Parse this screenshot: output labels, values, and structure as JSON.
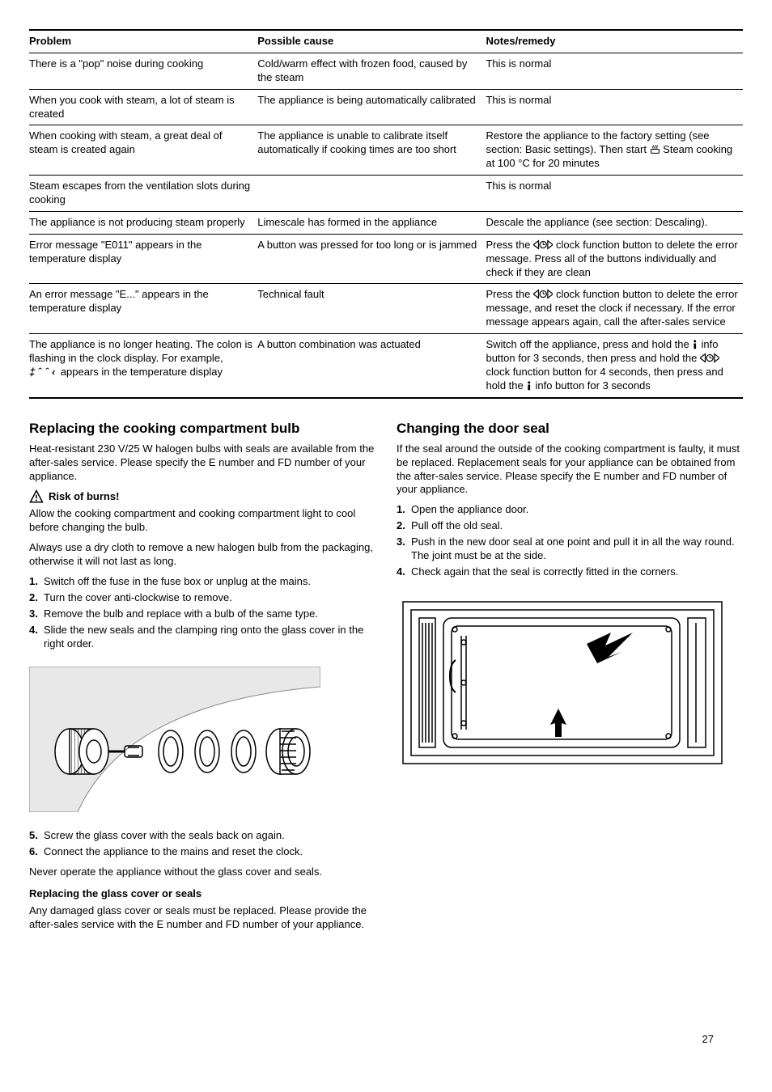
{
  "table": {
    "headers": [
      "Problem",
      "Possible cause",
      "Notes/remedy"
    ],
    "rows": [
      {
        "problem": "There is a \"pop\" noise during cooking",
        "cause": "Cold/warm effect with frozen food, caused by the steam",
        "remedy": "This is normal"
      },
      {
        "problem": "When you cook with steam, a lot of steam is created",
        "cause": "The appliance is being automatically calibrated",
        "remedy": "This is normal"
      },
      {
        "problem": "When cooking with steam, a great deal of steam is created again",
        "cause": "The appliance is unable to calibrate itself automatically if cooking times are too short",
        "remedy_pre": "Restore the appliance to the factory setting (see section: Basic settings). Then start ",
        "remedy_icon": "steam",
        "remedy_post": " Steam cooking at 100 °C for 20 minutes"
      },
      {
        "problem": "Steam escapes from the ventilation slots during cooking",
        "cause": "",
        "remedy": "This is normal"
      },
      {
        "problem": "The appliance is not producing steam properly",
        "cause": "Limescale has formed in the appliance",
        "remedy": "Descale the appliance (see section: Descaling)."
      },
      {
        "problem": "Error message \"E011\" appears in the temperature display",
        "cause": "A button was pressed for too long or is jammed",
        "remedy_pre": "Press the ",
        "remedy_icon": "clock-arrows",
        "remedy_post": " clock function button to delete the error message. Press all of the buttons individually and check if they are clean"
      },
      {
        "problem": "An error message \"E...\" appears in the temperature display",
        "cause": "Technical fault",
        "remedy_pre": "Press the ",
        "remedy_icon": "clock-arrows",
        "remedy_post": " clock function button to delete the error message, and reset the clock if necessary. If the error message appears again, call the after-sales service"
      },
      {
        "problem_pre": "The appliance is no longer heating. The colon is flashing in the clock display. For example, ",
        "problem_seg": "‡ˆˆ‹",
        "problem_post": " appears in the temperature display",
        "cause": "A button combination was actuated",
        "remedy_parts": [
          {
            "t": "Switch off the appliance, press and hold the "
          },
          {
            "i": "info"
          },
          {
            "t": " info button for 3 seconds, then press and hold the "
          },
          {
            "i": "clock-arrows"
          },
          {
            "t": " clock function button for 4 seconds, then press and hold the "
          },
          {
            "i": "info"
          },
          {
            "t": " info button for 3 seconds"
          }
        ]
      }
    ]
  },
  "left": {
    "heading": "Replacing the cooking compartment bulb",
    "intro": "Heat-resistant 230 V/25 W halogen bulbs with seals are available from the after-sales service. Please specify the E number and FD number of your appliance.",
    "warn_label": "Risk of burns!",
    "warn_text": "Allow the cooking compartment and cooking compartment light to cool before changing the bulb.",
    "note": "Always use a dry cloth to remove a new halogen bulb from the packaging, otherwise it will not last as long.",
    "steps": [
      "Switch off the fuse in the fuse box or unplug at the mains.",
      "Turn the cover anti-clockwise to remove.",
      "Remove the bulb and replace with a bulb of the same type.",
      "Slide the new seals and the clamping ring onto the glass cover in the right order.",
      "Screw the glass cover with the seals back on again.",
      "Connect the appliance to the mains and reset the clock."
    ],
    "figure_after_step": 4,
    "never": "Never operate the appliance without the glass cover and seals.",
    "sub_heading": "Replacing the glass cover or seals",
    "sub_text": "Any damaged glass cover or seals must be replaced. Please provide the after-sales service with the E number and FD number of your appliance."
  },
  "right": {
    "heading": "Changing the door seal",
    "intro": "If the seal around the outside of the cooking compartment is faulty, it must be replaced. Replacement seals for your appliance can be obtained from the after-sales service. Please specify the E number and FD number of your appliance.",
    "steps": [
      "Open the appliance door.",
      "Pull off the old seal.",
      "Push in the new door seal at one point and pull it in all the way round. The joint must be at the side.",
      "Check again that the seal is correctly fitted in the corners."
    ]
  },
  "page_number": "27"
}
